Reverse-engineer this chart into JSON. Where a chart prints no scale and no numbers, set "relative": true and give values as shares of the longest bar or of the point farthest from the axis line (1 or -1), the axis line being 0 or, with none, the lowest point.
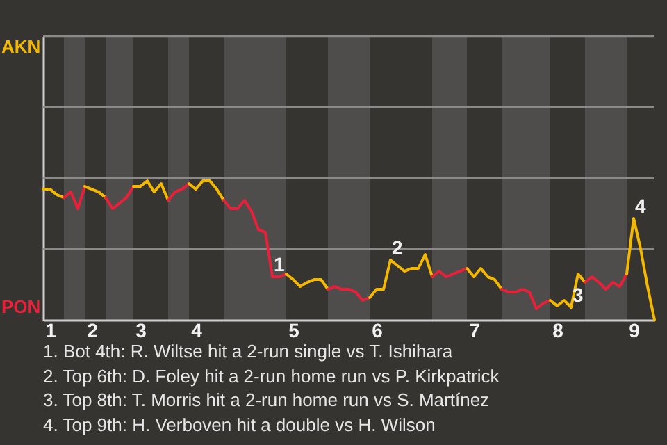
{
  "chart_data": {
    "type": "line",
    "relative": true,
    "categories": [
      null,
      "1",
      null,
      null,
      null,
      null,
      null,
      "2",
      null,
      null,
      null,
      null,
      null,
      null,
      "3",
      null,
      null,
      null,
      null,
      null,
      null,
      null,
      "4",
      null,
      null,
      null,
      null,
      null,
      null,
      null,
      null,
      null,
      null,
      null,
      null,
      null,
      "5",
      null,
      null,
      null,
      null,
      null,
      null,
      null,
      null,
      null,
      null,
      null,
      "6",
      null,
      null,
      null,
      null,
      null,
      null,
      null,
      null,
      null,
      null,
      null,
      null,
      null,
      "7",
      null,
      null,
      null,
      null,
      null,
      null,
      null,
      null,
      null,
      null,
      null,
      "8",
      null,
      null,
      null,
      null,
      null,
      null,
      null,
      null,
      null,
      null,
      "9",
      null,
      null,
      null
    ],
    "series": [
      {
        "color": "#f5b800",
        "values": [
          0.94,
          0.94,
          0.9,
          0.88,
          null,
          null,
          null,
          null,
          null,
          null,
          null,
          null,
          null,
          null,
          null,
          null,
          null,
          null,
          null,
          null,
          null,
          null,
          null,
          null,
          null,
          null,
          null,
          null,
          null,
          null,
          null,
          null,
          null,
          null,
          null,
          null,
          null,
          null,
          null,
          null,
          null,
          null,
          null,
          null,
          null,
          null,
          null,
          null,
          null,
          null,
          null,
          null,
          null,
          null,
          null,
          null,
          null,
          null,
          null,
          null,
          null,
          null,
          null,
          null,
          null,
          null,
          null,
          null,
          null,
          null,
          null,
          null,
          null,
          null,
          null,
          null,
          null,
          null,
          null,
          null,
          null,
          null,
          null,
          null,
          null,
          null,
          null,
          null,
          null
        ]
      },
      {
        "color": "#e8203a",
        "values": [
          null,
          null,
          null,
          0.88,
          0.92,
          0.8,
          0.96,
          null,
          null,
          null,
          null,
          null,
          null,
          null,
          null,
          null,
          null,
          null,
          null,
          null,
          null,
          null,
          null,
          null,
          null,
          null,
          null,
          null,
          null,
          null,
          null,
          null,
          null,
          null,
          null,
          null,
          null,
          null,
          null,
          null,
          null,
          null,
          null,
          null,
          null,
          null,
          null,
          null,
          null,
          null,
          null,
          null,
          null,
          null,
          null,
          null,
          null,
          null,
          null,
          null,
          null,
          null,
          null,
          null,
          null,
          null,
          null,
          null,
          null,
          null,
          null,
          null,
          null,
          null,
          null,
          null,
          null,
          null,
          null,
          null,
          null,
          null,
          null,
          null,
          null,
          null,
          null,
          null,
          null
        ]
      },
      {
        "color": "#f5b800",
        "values": [
          null,
          null,
          null,
          null,
          null,
          null,
          0.96,
          0.94,
          0.92,
          0.88,
          null,
          null,
          null,
          null,
          null,
          null,
          null,
          null,
          null,
          null,
          null,
          null,
          null,
          null,
          null,
          null,
          null,
          null,
          null,
          null,
          null,
          null,
          null,
          null,
          null,
          null,
          null,
          null,
          null,
          null,
          null,
          null,
          null,
          null,
          null,
          null,
          null,
          null,
          null,
          null,
          null,
          null,
          null,
          null,
          null,
          null,
          null,
          null,
          null,
          null,
          null,
          null,
          null,
          null,
          null,
          null,
          null,
          null,
          null,
          null,
          null,
          null,
          null,
          null,
          null,
          null,
          null,
          null,
          null,
          null,
          null,
          null,
          null,
          null,
          null,
          null,
          null,
          null,
          null
        ]
      },
      {
        "color": "#e8203a",
        "values": [
          null,
          null,
          null,
          null,
          null,
          null,
          null,
          null,
          null,
          0.88,
          0.8,
          0.84,
          0.88,
          0.96,
          null,
          null,
          null,
          null,
          null,
          null,
          null,
          null,
          null,
          null,
          null,
          null,
          null,
          null,
          null,
          null,
          null,
          null,
          null,
          null,
          null,
          null,
          null,
          null,
          null,
          null,
          null,
          null,
          null,
          null,
          null,
          null,
          null,
          null,
          null,
          null,
          null,
          null,
          null,
          null,
          null,
          null,
          null,
          null,
          null,
          null,
          null,
          null,
          null,
          null,
          null,
          null,
          null,
          null,
          null,
          null,
          null,
          null,
          null,
          null,
          null,
          null,
          null,
          null,
          null,
          null,
          null,
          null,
          null,
          null,
          null,
          null,
          null,
          null,
          null
        ]
      },
      {
        "color": "#f5b800",
        "values": [
          null,
          null,
          null,
          null,
          null,
          null,
          null,
          null,
          null,
          null,
          null,
          null,
          null,
          0.96,
          0.96,
          1,
          0.92,
          0.98,
          0.86,
          null,
          null,
          null,
          null,
          null,
          null,
          null,
          null,
          null,
          null,
          null,
          null,
          null,
          null,
          null,
          null,
          null,
          null,
          null,
          null,
          null,
          null,
          null,
          null,
          null,
          null,
          null,
          null,
          null,
          null,
          null,
          null,
          null,
          null,
          null,
          null,
          null,
          null,
          null,
          null,
          null,
          null,
          null,
          null,
          null,
          null,
          null,
          null,
          null,
          null,
          null,
          null,
          null,
          null,
          null,
          null,
          null,
          null,
          null,
          null,
          null,
          null,
          null,
          null,
          null,
          null,
          null,
          null,
          null,
          null
        ]
      },
      {
        "color": "#e8203a",
        "values": [
          null,
          null,
          null,
          null,
          null,
          null,
          null,
          null,
          null,
          null,
          null,
          null,
          null,
          null,
          null,
          null,
          null,
          null,
          0.86,
          0.92,
          0.94,
          0.98,
          null,
          null,
          null,
          null,
          null,
          null,
          null,
          null,
          null,
          null,
          null,
          null,
          null,
          null,
          null,
          null,
          null,
          null,
          null,
          null,
          null,
          null,
          null,
          null,
          null,
          null,
          null,
          null,
          null,
          null,
          null,
          null,
          null,
          null,
          null,
          null,
          null,
          null,
          null,
          null,
          null,
          null,
          null,
          null,
          null,
          null,
          null,
          null,
          null,
          null,
          null,
          null,
          null,
          null,
          null,
          null,
          null,
          null,
          null,
          null,
          null,
          null,
          null,
          null,
          null,
          null,
          null
        ]
      },
      {
        "color": "#f5b800",
        "values": [
          null,
          null,
          null,
          null,
          null,
          null,
          null,
          null,
          null,
          null,
          null,
          null,
          null,
          null,
          null,
          null,
          null,
          null,
          null,
          null,
          null,
          0.98,
          0.94,
          1,
          1,
          0.94,
          0.86,
          null,
          null,
          null,
          null,
          null,
          null,
          null,
          null,
          null,
          null,
          null,
          null,
          null,
          null,
          null,
          null,
          null,
          null,
          null,
          null,
          null,
          null,
          null,
          null,
          null,
          null,
          null,
          null,
          null,
          null,
          null,
          null,
          null,
          null,
          null,
          null,
          null,
          null,
          null,
          null,
          null,
          null,
          null,
          null,
          null,
          null,
          null,
          null,
          null,
          null,
          null,
          null,
          null,
          null,
          null,
          null,
          null,
          null,
          null,
          null,
          null,
          null
        ]
      },
      {
        "color": "#e8203a",
        "values": [
          null,
          null,
          null,
          null,
          null,
          null,
          null,
          null,
          null,
          null,
          null,
          null,
          null,
          null,
          null,
          null,
          null,
          null,
          null,
          null,
          null,
          null,
          null,
          null,
          null,
          null,
          0.86,
          0.8,
          0.8,
          0.86,
          0.78,
          0.65,
          0.63,
          0.31,
          0.31,
          0.33,
          null,
          null,
          null,
          null,
          null,
          null,
          null,
          null,
          null,
          null,
          null,
          null,
          null,
          null,
          null,
          null,
          null,
          null,
          null,
          null,
          null,
          null,
          null,
          null,
          null,
          null,
          null,
          null,
          null,
          null,
          null,
          null,
          null,
          null,
          null,
          null,
          null,
          null,
          null,
          null,
          null,
          null,
          null,
          null,
          null,
          null,
          null,
          null,
          null,
          null,
          null,
          null,
          null
        ]
      },
      {
        "color": "#f5b800",
        "values": [
          null,
          null,
          null,
          null,
          null,
          null,
          null,
          null,
          null,
          null,
          null,
          null,
          null,
          null,
          null,
          null,
          null,
          null,
          null,
          null,
          null,
          null,
          null,
          null,
          null,
          null,
          null,
          null,
          null,
          null,
          null,
          null,
          null,
          null,
          null,
          0.33,
          0.29,
          0.24,
          0.27,
          0.29,
          0.29,
          0.22,
          null,
          null,
          null,
          null,
          null,
          null,
          null,
          null,
          null,
          null,
          null,
          null,
          null,
          null,
          null,
          null,
          null,
          null,
          null,
          null,
          null,
          null,
          null,
          null,
          null,
          null,
          null,
          null,
          null,
          null,
          null,
          null,
          null,
          null,
          null,
          null,
          null,
          null,
          null,
          null,
          null,
          null,
          null,
          null,
          null,
          null,
          null
        ]
      },
      {
        "color": "#e8203a",
        "values": [
          null,
          null,
          null,
          null,
          null,
          null,
          null,
          null,
          null,
          null,
          null,
          null,
          null,
          null,
          null,
          null,
          null,
          null,
          null,
          null,
          null,
          null,
          null,
          null,
          null,
          null,
          null,
          null,
          null,
          null,
          null,
          null,
          null,
          null,
          null,
          null,
          null,
          null,
          null,
          null,
          null,
          0.22,
          0.24,
          0.22,
          0.22,
          0.2,
          0.14,
          0.16,
          null,
          null,
          null,
          null,
          null,
          null,
          null,
          null,
          null,
          null,
          null,
          null,
          null,
          null,
          null,
          null,
          null,
          null,
          null,
          null,
          null,
          null,
          null,
          null,
          null,
          null,
          null,
          null,
          null,
          null,
          null,
          null,
          null,
          null,
          null,
          null,
          null,
          null,
          null,
          null,
          null
        ]
      },
      {
        "color": "#f5b800",
        "values": [
          null,
          null,
          null,
          null,
          null,
          null,
          null,
          null,
          null,
          null,
          null,
          null,
          null,
          null,
          null,
          null,
          null,
          null,
          null,
          null,
          null,
          null,
          null,
          null,
          null,
          null,
          null,
          null,
          null,
          null,
          null,
          null,
          null,
          null,
          null,
          null,
          null,
          null,
          null,
          null,
          null,
          null,
          null,
          null,
          null,
          null,
          null,
          0.16,
          0.22,
          0.22,
          0.43,
          0.39,
          0.35,
          0.37,
          0.37,
          0.47,
          0.31,
          null,
          null,
          null,
          null,
          null,
          null,
          null,
          null,
          null,
          null,
          null,
          null,
          null,
          null,
          null,
          null,
          null,
          null,
          null,
          null,
          null,
          null,
          null,
          null,
          null,
          null,
          null,
          null,
          null,
          null,
          null,
          null
        ]
      },
      {
        "color": "#e8203a",
        "values": [
          null,
          null,
          null,
          null,
          null,
          null,
          null,
          null,
          null,
          null,
          null,
          null,
          null,
          null,
          null,
          null,
          null,
          null,
          null,
          null,
          null,
          null,
          null,
          null,
          null,
          null,
          null,
          null,
          null,
          null,
          null,
          null,
          null,
          null,
          null,
          null,
          null,
          null,
          null,
          null,
          null,
          null,
          null,
          null,
          null,
          null,
          null,
          null,
          null,
          null,
          null,
          null,
          null,
          null,
          null,
          null,
          0.31,
          0.35,
          0.31,
          0.33,
          0.35,
          0.37,
          null,
          null,
          null,
          null,
          null,
          null,
          null,
          null,
          null,
          null,
          null,
          null,
          null,
          null,
          null,
          null,
          null,
          null,
          null,
          null,
          null,
          null,
          null,
          null,
          null,
          null,
          null
        ]
      },
      {
        "color": "#f5b800",
        "values": [
          null,
          null,
          null,
          null,
          null,
          null,
          null,
          null,
          null,
          null,
          null,
          null,
          null,
          null,
          null,
          null,
          null,
          null,
          null,
          null,
          null,
          null,
          null,
          null,
          null,
          null,
          null,
          null,
          null,
          null,
          null,
          null,
          null,
          null,
          null,
          null,
          null,
          null,
          null,
          null,
          null,
          null,
          null,
          null,
          null,
          null,
          null,
          null,
          null,
          null,
          null,
          null,
          null,
          null,
          null,
          null,
          null,
          null,
          null,
          null,
          null,
          0.37,
          0.31,
          0.37,
          0.31,
          0.29,
          0.22,
          null,
          null,
          null,
          null,
          null,
          null,
          null,
          null,
          null,
          null,
          null,
          null,
          null,
          null,
          null,
          null,
          null,
          null,
          null,
          null,
          null,
          null
        ]
      },
      {
        "color": "#e8203a",
        "values": [
          null,
          null,
          null,
          null,
          null,
          null,
          null,
          null,
          null,
          null,
          null,
          null,
          null,
          null,
          null,
          null,
          null,
          null,
          null,
          null,
          null,
          null,
          null,
          null,
          null,
          null,
          null,
          null,
          null,
          null,
          null,
          null,
          null,
          null,
          null,
          null,
          null,
          null,
          null,
          null,
          null,
          null,
          null,
          null,
          null,
          null,
          null,
          null,
          null,
          null,
          null,
          null,
          null,
          null,
          null,
          null,
          null,
          null,
          null,
          null,
          null,
          null,
          null,
          null,
          null,
          null,
          0.22,
          0.2,
          0.2,
          0.22,
          0.2,
          0.08,
          0.12,
          0.14,
          null,
          null,
          null,
          null,
          null,
          null,
          null,
          null,
          null,
          null,
          null,
          null,
          null,
          null,
          null
        ]
      },
      {
        "color": "#f5b800",
        "values": [
          null,
          null,
          null,
          null,
          null,
          null,
          null,
          null,
          null,
          null,
          null,
          null,
          null,
          null,
          null,
          null,
          null,
          null,
          null,
          null,
          null,
          null,
          null,
          null,
          null,
          null,
          null,
          null,
          null,
          null,
          null,
          null,
          null,
          null,
          null,
          null,
          null,
          null,
          null,
          null,
          null,
          null,
          null,
          null,
          null,
          null,
          null,
          null,
          null,
          null,
          null,
          null,
          null,
          null,
          null,
          null,
          null,
          null,
          null,
          null,
          null,
          null,
          null,
          null,
          null,
          null,
          null,
          null,
          null,
          null,
          null,
          null,
          null,
          0.14,
          0.1,
          0.14,
          0.09,
          0.33,
          0.27,
          null,
          null,
          null,
          null,
          null,
          null,
          null,
          null,
          null,
          null
        ]
      },
      {
        "color": "#e8203a",
        "values": [
          null,
          null,
          null,
          null,
          null,
          null,
          null,
          null,
          null,
          null,
          null,
          null,
          null,
          null,
          null,
          null,
          null,
          null,
          null,
          null,
          null,
          null,
          null,
          null,
          null,
          null,
          null,
          null,
          null,
          null,
          null,
          null,
          null,
          null,
          null,
          null,
          null,
          null,
          null,
          null,
          null,
          null,
          null,
          null,
          null,
          null,
          null,
          null,
          null,
          null,
          null,
          null,
          null,
          null,
          null,
          null,
          null,
          null,
          null,
          null,
          null,
          null,
          null,
          null,
          null,
          null,
          null,
          null,
          null,
          null,
          null,
          null,
          null,
          null,
          null,
          null,
          null,
          null,
          0.27,
          0.31,
          0.27,
          0.22,
          0.27,
          0.24,
          0.33,
          null,
          null,
          null,
          null
        ]
      },
      {
        "color": "#f5b800",
        "values": [
          null,
          null,
          null,
          null,
          null,
          null,
          null,
          null,
          null,
          null,
          null,
          null,
          null,
          null,
          null,
          null,
          null,
          null,
          null,
          null,
          null,
          null,
          null,
          null,
          null,
          null,
          null,
          null,
          null,
          null,
          null,
          null,
          null,
          null,
          null,
          null,
          null,
          null,
          null,
          null,
          null,
          null,
          null,
          null,
          null,
          null,
          null,
          null,
          null,
          null,
          null,
          null,
          null,
          null,
          null,
          null,
          null,
          null,
          null,
          null,
          null,
          null,
          null,
          null,
          null,
          null,
          null,
          null,
          null,
          null,
          null,
          null,
          null,
          null,
          null,
          null,
          null,
          null,
          null,
          null,
          null,
          null,
          null,
          null,
          0.33,
          0.73,
          0.51,
          0.24,
          0
        ]
      }
    ],
    "ref_lines": [
      {
        "axis": "y",
        "value": 0.51,
        "color": "#8a8a8a"
      },
      {
        "axis": "y",
        "value": 1.02,
        "color": "#8a8a8a"
      },
      {
        "axis": "y",
        "value": 1.53,
        "color": "#8a8a8a"
      },
      {
        "axis": "y",
        "value": 2.04,
        "color": "#8a8a8a"
      }
    ],
    "line_style": "solid",
    "annotations": [
      "AKN",
      "PON",
      {
        "text": "1",
        "y": 0.31
      },
      {
        "text": "2",
        "y": 0.43
      },
      {
        "text": "3",
        "y": 0.09
      },
      {
        "text": "4",
        "y": 0.73
      },
      "1. Bot 4th: R. Wiltse hit a 2-run single vs T. Ishihara",
      "2. Top 6th: D. Foley hit a 2-run home run vs P. Kirkpatrick",
      "3. Top 8th: T. Morris hit a 2-run home run vs S. Martínez",
      "4. Top 9th: H. Verboven hit a double vs H. Wilson"
    ]
  }
}
